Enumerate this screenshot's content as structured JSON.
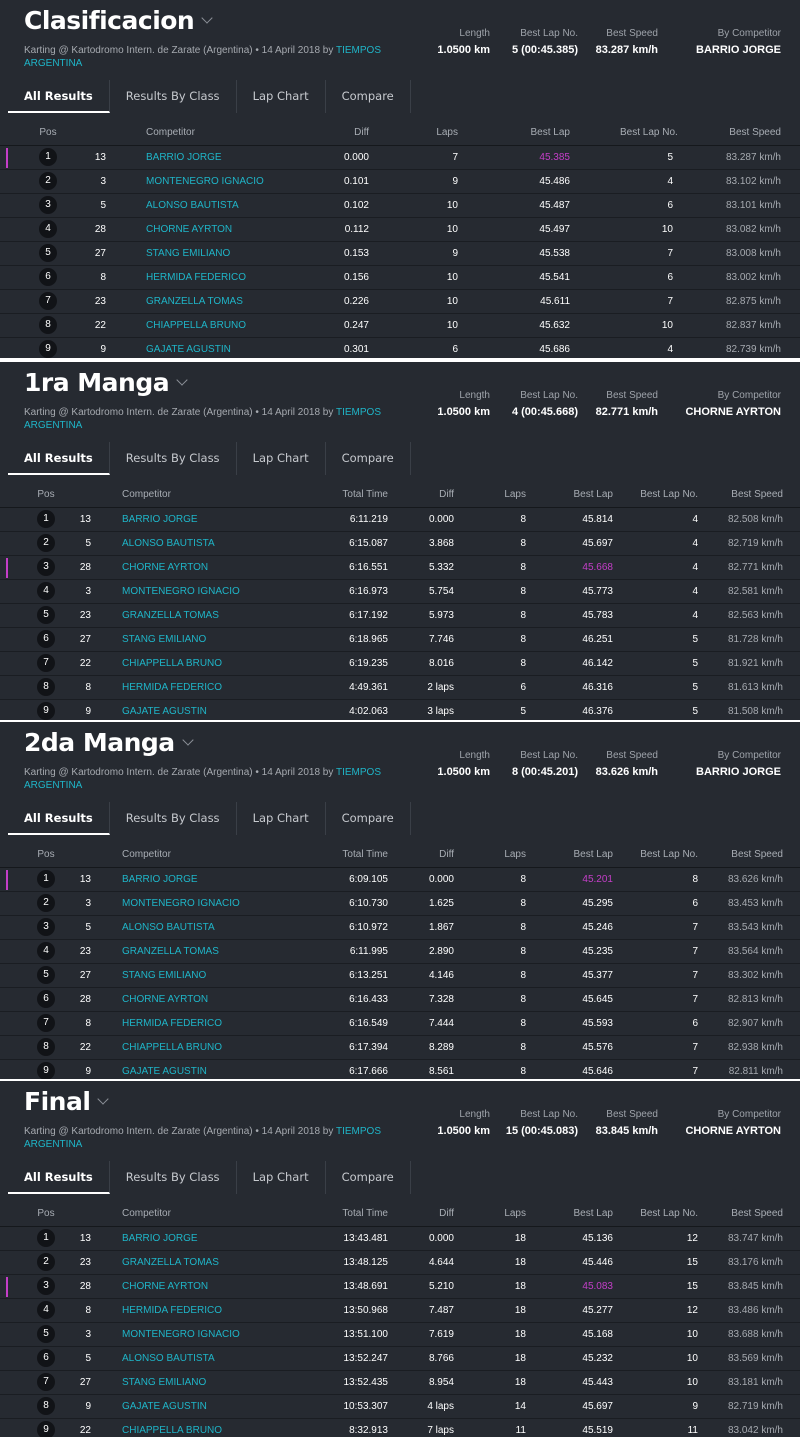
{
  "tabs": [
    "All Results",
    "Results By Class",
    "Lap Chart",
    "Compare"
  ],
  "subtitle": "Karting @ Kartodromo Intern. de Zarate (Argentina) • 14 April 2018 by",
  "subtitle_link": "TIEMPOS ARGENTINA",
  "stat_labels": {
    "length": "Length",
    "best_lap_no": "Best Lap No.",
    "best_speed": "Best Speed",
    "by_competitor": "By Competitor"
  },
  "headers": {
    "pos": "Pos",
    "competitor": "Competitor",
    "total_time": "Total Time",
    "diff": "Diff",
    "laps": "Laps",
    "best_lap": "Best Lap",
    "best_lap_no": "Best Lap No.",
    "best_speed": "Best Speed"
  },
  "colors": {
    "panel_bg": "#262a31",
    "link": "#1fb5c8",
    "fastest": "#c43ec8",
    "text": "#ffffff"
  },
  "sessions": [
    {
      "title": "Clasificacion",
      "has_total_time": false,
      "stats": {
        "length": "1.0500 km",
        "best_lap_no": "5 (00:45.385)",
        "best_speed": "83.287 km/h",
        "by_competitor": "BARRIO JORGE"
      },
      "rows": [
        {
          "pos": "1",
          "no": "13",
          "name": "BARRIO JORGE",
          "diff": "0.000",
          "laps": "7",
          "best": "45.385",
          "bestno": "5",
          "speed": "83.287 km/h",
          "fastest": true
        },
        {
          "pos": "2",
          "no": "3",
          "name": "MONTENEGRO IGNACIO",
          "diff": "0.101",
          "laps": "9",
          "best": "45.486",
          "bestno": "4",
          "speed": "83.102 km/h"
        },
        {
          "pos": "3",
          "no": "5",
          "name": "ALONSO BAUTISTA",
          "diff": "0.102",
          "laps": "10",
          "best": "45.487",
          "bestno": "6",
          "speed": "83.101 km/h"
        },
        {
          "pos": "4",
          "no": "28",
          "name": "CHORNE AYRTON",
          "diff": "0.112",
          "laps": "10",
          "best": "45.497",
          "bestno": "10",
          "speed": "83.082 km/h"
        },
        {
          "pos": "5",
          "no": "27",
          "name": "STANG EMILIANO",
          "diff": "0.153",
          "laps": "9",
          "best": "45.538",
          "bestno": "7",
          "speed": "83.008 km/h"
        },
        {
          "pos": "6",
          "no": "8",
          "name": "HERMIDA FEDERICO",
          "diff": "0.156",
          "laps": "10",
          "best": "45.541",
          "bestno": "6",
          "speed": "83.002 km/h"
        },
        {
          "pos": "7",
          "no": "23",
          "name": "GRANZELLA TOMAS",
          "diff": "0.226",
          "laps": "10",
          "best": "45.611",
          "bestno": "7",
          "speed": "82.875 km/h"
        },
        {
          "pos": "8",
          "no": "22",
          "name": "CHIAPPELLA BRUNO",
          "diff": "0.247",
          "laps": "10",
          "best": "45.632",
          "bestno": "10",
          "speed": "82.837 km/h"
        },
        {
          "pos": "9",
          "no": "9",
          "name": "GAJATE AGUSTIN",
          "diff": "0.301",
          "laps": "6",
          "best": "45.686",
          "bestno": "4",
          "speed": "82.739 km/h"
        }
      ]
    },
    {
      "title": "1ra Manga",
      "has_total_time": true,
      "stats": {
        "length": "1.0500 km",
        "best_lap_no": "4 (00:45.668)",
        "best_speed": "82.771 km/h",
        "by_competitor": "CHORNE AYRTON"
      },
      "rows": [
        {
          "pos": "1",
          "no": "13",
          "name": "BARRIO JORGE",
          "total": "6:11.219",
          "diff": "0.000",
          "laps": "8",
          "best": "45.814",
          "bestno": "4",
          "speed": "82.508 km/h"
        },
        {
          "pos": "2",
          "no": "5",
          "name": "ALONSO BAUTISTA",
          "total": "6:15.087",
          "diff": "3.868",
          "laps": "8",
          "best": "45.697",
          "bestno": "4",
          "speed": "82.719 km/h"
        },
        {
          "pos": "3",
          "no": "28",
          "name": "CHORNE AYRTON",
          "total": "6:16.551",
          "diff": "5.332",
          "laps": "8",
          "best": "45.668",
          "bestno": "4",
          "speed": "82.771 km/h",
          "fastest": true
        },
        {
          "pos": "4",
          "no": "3",
          "name": "MONTENEGRO IGNACIO",
          "total": "6:16.973",
          "diff": "5.754",
          "laps": "8",
          "best": "45.773",
          "bestno": "4",
          "speed": "82.581 km/h"
        },
        {
          "pos": "5",
          "no": "23",
          "name": "GRANZELLA TOMAS",
          "total": "6:17.192",
          "diff": "5.973",
          "laps": "8",
          "best": "45.783",
          "bestno": "4",
          "speed": "82.563 km/h"
        },
        {
          "pos": "6",
          "no": "27",
          "name": "STANG EMILIANO",
          "total": "6:18.965",
          "diff": "7.746",
          "laps": "8",
          "best": "46.251",
          "bestno": "5",
          "speed": "81.728 km/h"
        },
        {
          "pos": "7",
          "no": "22",
          "name": "CHIAPPELLA BRUNO",
          "total": "6:19.235",
          "diff": "8.016",
          "laps": "8",
          "best": "46.142",
          "bestno": "5",
          "speed": "81.921 km/h"
        },
        {
          "pos": "8",
          "no": "8",
          "name": "HERMIDA FEDERICO",
          "total": "4:49.361",
          "diff": "2 laps",
          "laps": "6",
          "best": "46.316",
          "bestno": "5",
          "speed": "81.613 km/h"
        },
        {
          "pos": "9",
          "no": "9",
          "name": "GAJATE AGUSTIN",
          "total": "4:02.063",
          "diff": "3 laps",
          "laps": "5",
          "best": "46.376",
          "bestno": "5",
          "speed": "81.508 km/h"
        }
      ]
    },
    {
      "title": "2da Manga",
      "has_total_time": true,
      "stats": {
        "length": "1.0500 km",
        "best_lap_no": "8 (00:45.201)",
        "best_speed": "83.626 km/h",
        "by_competitor": "BARRIO JORGE"
      },
      "rows": [
        {
          "pos": "1",
          "no": "13",
          "name": "BARRIO JORGE",
          "total": "6:09.105",
          "diff": "0.000",
          "laps": "8",
          "best": "45.201",
          "bestno": "8",
          "speed": "83.626 km/h",
          "fastest": true
        },
        {
          "pos": "2",
          "no": "3",
          "name": "MONTENEGRO IGNACIO",
          "total": "6:10.730",
          "diff": "1.625",
          "laps": "8",
          "best": "45.295",
          "bestno": "6",
          "speed": "83.453 km/h"
        },
        {
          "pos": "3",
          "no": "5",
          "name": "ALONSO BAUTISTA",
          "total": "6:10.972",
          "diff": "1.867",
          "laps": "8",
          "best": "45.246",
          "bestno": "7",
          "speed": "83.543 km/h"
        },
        {
          "pos": "4",
          "no": "23",
          "name": "GRANZELLA TOMAS",
          "total": "6:11.995",
          "diff": "2.890",
          "laps": "8",
          "best": "45.235",
          "bestno": "7",
          "speed": "83.564 km/h"
        },
        {
          "pos": "5",
          "no": "27",
          "name": "STANG EMILIANO",
          "total": "6:13.251",
          "diff": "4.146",
          "laps": "8",
          "best": "45.377",
          "bestno": "7",
          "speed": "83.302 km/h"
        },
        {
          "pos": "6",
          "no": "28",
          "name": "CHORNE AYRTON",
          "total": "6:16.433",
          "diff": "7.328",
          "laps": "8",
          "best": "45.645",
          "bestno": "7",
          "speed": "82.813 km/h"
        },
        {
          "pos": "7",
          "no": "8",
          "name": "HERMIDA FEDERICO",
          "total": "6:16.549",
          "diff": "7.444",
          "laps": "8",
          "best": "45.593",
          "bestno": "6",
          "speed": "82.907 km/h"
        },
        {
          "pos": "8",
          "no": "22",
          "name": "CHIAPPELLA BRUNO",
          "total": "6:17.394",
          "diff": "8.289",
          "laps": "8",
          "best": "45.576",
          "bestno": "7",
          "speed": "82.938 km/h"
        },
        {
          "pos": "9",
          "no": "9",
          "name": "GAJATE AGUSTIN",
          "total": "6:17.666",
          "diff": "8.561",
          "laps": "8",
          "best": "45.646",
          "bestno": "7",
          "speed": "82.811 km/h"
        }
      ]
    },
    {
      "title": "Final",
      "has_total_time": true,
      "stats": {
        "length": "1.0500 km",
        "best_lap_no": "15 (00:45.083)",
        "best_speed": "83.845 km/h",
        "by_competitor": "CHORNE AYRTON"
      },
      "rows": [
        {
          "pos": "1",
          "no": "13",
          "name": "BARRIO JORGE",
          "total": "13:43.481",
          "diff": "0.000",
          "laps": "18",
          "best": "45.136",
          "bestno": "12",
          "speed": "83.747 km/h"
        },
        {
          "pos": "2",
          "no": "23",
          "name": "GRANZELLA TOMAS",
          "total": "13:48.125",
          "diff": "4.644",
          "laps": "18",
          "best": "45.446",
          "bestno": "15",
          "speed": "83.176 km/h"
        },
        {
          "pos": "3",
          "no": "28",
          "name": "CHORNE AYRTON",
          "total": "13:48.691",
          "diff": "5.210",
          "laps": "18",
          "best": "45.083",
          "bestno": "15",
          "speed": "83.845 km/h",
          "fastest": true
        },
        {
          "pos": "4",
          "no": "8",
          "name": "HERMIDA FEDERICO",
          "total": "13:50.968",
          "diff": "7.487",
          "laps": "18",
          "best": "45.277",
          "bestno": "12",
          "speed": "83.486 km/h"
        },
        {
          "pos": "5",
          "no": "3",
          "name": "MONTENEGRO IGNACIO",
          "total": "13:51.100",
          "diff": "7.619",
          "laps": "18",
          "best": "45.168",
          "bestno": "10",
          "speed": "83.688 km/h"
        },
        {
          "pos": "6",
          "no": "5",
          "name": "ALONSO BAUTISTA",
          "total": "13:52.247",
          "diff": "8.766",
          "laps": "18",
          "best": "45.232",
          "bestno": "10",
          "speed": "83.569 km/h"
        },
        {
          "pos": "7",
          "no": "27",
          "name": "STANG EMILIANO",
          "total": "13:52.435",
          "diff": "8.954",
          "laps": "18",
          "best": "45.443",
          "bestno": "10",
          "speed": "83.181 km/h"
        },
        {
          "pos": "8",
          "no": "9",
          "name": "GAJATE AGUSTIN",
          "total": "10:53.307",
          "diff": "4 laps",
          "laps": "14",
          "best": "45.697",
          "bestno": "9",
          "speed": "82.719 km/h"
        },
        {
          "pos": "9",
          "no": "22",
          "name": "CHIAPPELLA BRUNO",
          "total": "8:32.913",
          "diff": "7 laps",
          "laps": "11",
          "best": "45.519",
          "bestno": "11",
          "speed": "83.042 km/h"
        }
      ]
    }
  ]
}
